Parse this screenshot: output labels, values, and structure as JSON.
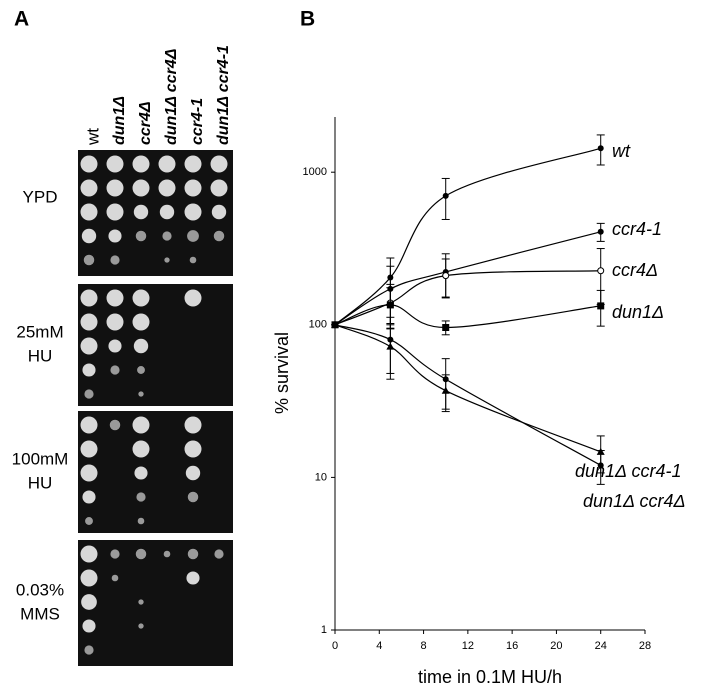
{
  "panel_a": {
    "label": "A",
    "columns": [
      "wt",
      "dun1Δ",
      "ccr4Δ",
      "dun1Δ ccr4Δ",
      "ccr4-1",
      "dun1Δ ccr4-1"
    ],
    "rows": [
      [
        "YPD"
      ],
      [
        "25mM",
        "HU"
      ],
      [
        "100mM",
        "HU"
      ],
      [
        "0.03%",
        "MMS"
      ]
    ]
  },
  "chart_data": {
    "type": "line",
    "panel_label": "B",
    "x_label": "time in 0.1M HU/h",
    "y_label": "% survival",
    "x": [
      0,
      5,
      10,
      24
    ],
    "xlim": [
      0,
      28
    ],
    "xticks": [
      0,
      4,
      8,
      12,
      16,
      20,
      24,
      28
    ],
    "ylim": [
      1,
      2300
    ],
    "yticks": [
      1,
      10,
      100,
      1000
    ],
    "log_y": true,
    "series": [
      {
        "name": "wt",
        "color": "#000000",
        "marker": "circle",
        "values": [
          100,
          204,
          700,
          1435
        ],
        "errors": [
          null,
          70,
          210,
          320
        ]
      },
      {
        "name": "ccr4-1",
        "color": "#000000",
        "marker": "circle",
        "values": [
          100,
          172,
          222,
          407
        ],
        "errors": [
          null,
          70,
          70,
          55
        ]
      },
      {
        "name": "ccr4Δ",
        "color": "#000000",
        "marker": "open-circle",
        "values": [
          100,
          139,
          210,
          226
        ],
        "errors": [
          null,
          45,
          60,
          90
        ]
      },
      {
        "name": "dun1Δ",
        "color": "#000000",
        "marker": "square",
        "values": [
          100,
          135,
          96,
          133
        ],
        "errors": [
          null,
          40,
          10,
          35
        ]
      },
      {
        "name": "dun1Δ ccr4-1",
        "color": "#000000",
        "marker": "triangle",
        "values": [
          100,
          72,
          37,
          14.7
        ],
        "errors": [
          null,
          28,
          10,
          4
        ]
      },
      {
        "name": "dun1Δ ccr4Δ",
        "color": "#000000",
        "marker": "circle",
        "values": [
          100,
          80,
          44,
          12
        ],
        "errors": [
          null,
          32,
          16,
          3
        ]
      }
    ]
  }
}
